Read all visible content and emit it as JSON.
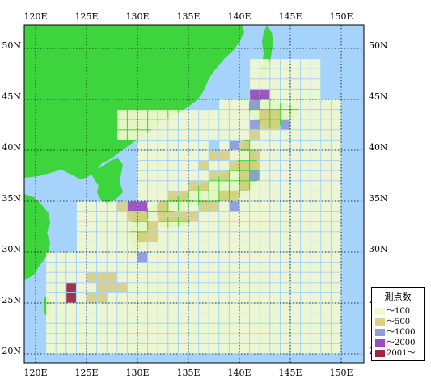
{
  "map": {
    "lon_labels": [
      "120E",
      "125E",
      "130E",
      "135E",
      "140E",
      "145E",
      "150E"
    ],
    "lat_labels": [
      "50N",
      "45N",
      "40N",
      "35N",
      "30N",
      "25N",
      "20N"
    ],
    "colors": {
      "sea": "#a5d3fb",
      "land": "#3dd43d",
      "grid": "#000000",
      "border": "#000000"
    }
  },
  "legend": {
    "title": "測点数",
    "items": [
      {
        "label": "～100",
        "color": "#f3f8cf"
      },
      {
        "label": "～500",
        "color": "#dcd183"
      },
      {
        "label": "～1000",
        "color": "#8f9cd8"
      },
      {
        "label": "～2000",
        "color": "#9b4dbd"
      },
      {
        "label": "2001～",
        "color": "#a0253e"
      }
    ]
  }
}
